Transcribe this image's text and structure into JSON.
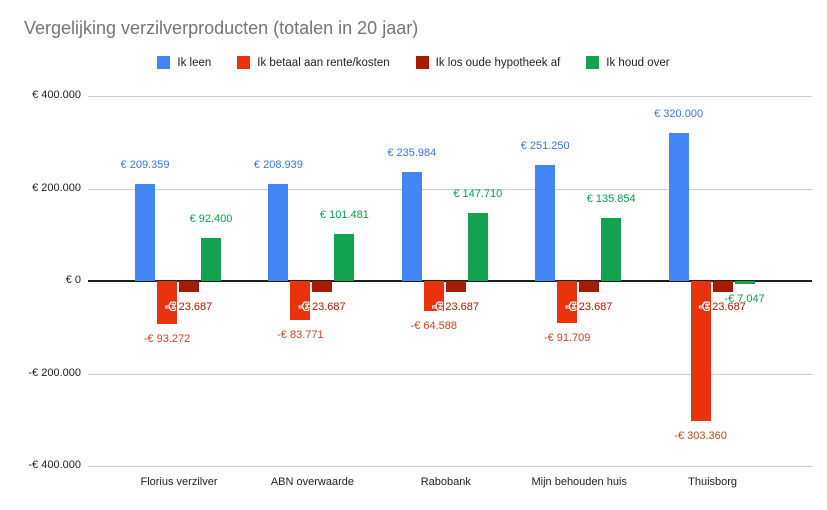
{
  "title": "Vergelijking verzilverproducten (totalen in 20 jaar)",
  "chart_data": {
    "type": "bar",
    "title": "Vergelijking verzilverproducten (totalen in 20 jaar)",
    "legend_position": "top",
    "grid": true,
    "background_color": "#ffffff",
    "title_color": "#757575",
    "categories": [
      "Florius verzilver",
      "ABN overwaarde",
      "Rabobank",
      "Mijn behouden huis",
      "Thuisborg"
    ],
    "series": [
      {
        "name": "Ik leen",
        "color": "#4285f4",
        "label_color": "#3b77d8",
        "values": [
          209359,
          208939,
          235984,
          251250,
          320000
        ],
        "labels": [
          "€ 209.359",
          "€ 208.939",
          "€ 235.984",
          "€ 251.250",
          "€ 320.000"
        ]
      },
      {
        "name": "Ik betaal aan rente/kosten",
        "color": "#e8330c",
        "label_color": "#ce431e",
        "values": [
          -93272,
          -83771,
          -64588,
          -91709,
          -303360
        ],
        "labels": [
          "-€ 93.272",
          "-€ 83.771",
          "-€ 64.588",
          "-€ 91.709",
          "-€ 303.360"
        ]
      },
      {
        "name": "Ik los oude hypotheek af",
        "color": "#a61c00",
        "label_color": "#a61c00",
        "halo": true,
        "values": [
          -23687,
          -23687,
          -23687,
          -23687,
          -23687
        ],
        "labels": [
          "-€ 23.687",
          "-€ 23.687",
          "-€ 23.687",
          "-€ 23.687",
          "-€ 23.687"
        ]
      },
      {
        "name": "Ik houd over",
        "color": "#13a24e",
        "label_color": "#0e9d4f",
        "values": [
          92400,
          101481,
          147710,
          135854,
          -7047
        ],
        "labels": [
          "€ 92.400",
          "€ 101.481",
          "€ 147.710",
          "€ 135.854",
          "-€ 7.047"
        ]
      }
    ],
    "y_axis": {
      "range": [
        -400000,
        400000
      ],
      "ticks": [
        {
          "label": "€ 400.000",
          "value": 400000
        },
        {
          "label": "€ 200.000",
          "value": 200000
        },
        {
          "label": "€ 0",
          "value": 0
        },
        {
          "label": "-€ 200.000",
          "value": -200000
        },
        {
          "label": "-€ 400.000",
          "value": -400000
        }
      ]
    }
  }
}
